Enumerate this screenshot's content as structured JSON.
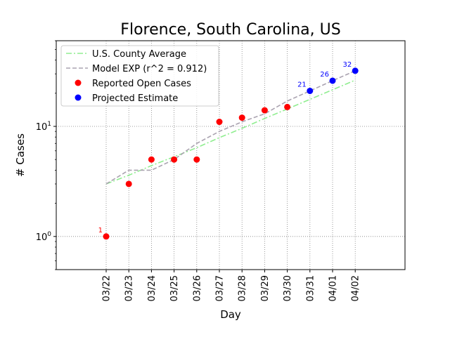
{
  "chart_data": {
    "type": "line",
    "title": "Florence, South Carolina, US",
    "xlabel": "Day",
    "ylabel": "# Cases",
    "yscale": "log",
    "ylim": [
      0.5,
      60
    ],
    "y_ticks": [
      {
        "value": 1,
        "label": "10^0"
      },
      {
        "value": 10,
        "label": "10^1"
      }
    ],
    "grid": true,
    "legend_position": "top-left",
    "categories": [
      "03/22",
      "03/23",
      "03/24",
      "03/25",
      "03/26",
      "03/27",
      "03/28",
      "03/29",
      "03/30",
      "03/31",
      "04/01",
      "04/02"
    ],
    "series": [
      {
        "name": "U.S. County Average",
        "style": "dashdot",
        "color": "#90ee90",
        "values": [
          3.0,
          3.6,
          4.4,
          5.3,
          6.4,
          7.9,
          9.6,
          11.8,
          14.4,
          17.6,
          21.5,
          26.3
        ]
      },
      {
        "name": "Model EXP (r^2 = 0.912)",
        "style": "dashed",
        "color": "#aaa3b0",
        "values": [
          3.0,
          4.0,
          4.0,
          5.0,
          7.0,
          9.0,
          11.0,
          13.0,
          17.0,
          21.0,
          26.0,
          32.0
        ]
      },
      {
        "name": "Reported Open Cases",
        "style": "marker",
        "color": "#ff0000",
        "values": [
          1,
          3,
          5,
          5,
          5,
          11,
          12,
          14,
          15,
          null,
          null,
          null
        ]
      },
      {
        "name": "Projected Estimate",
        "style": "marker",
        "color": "#0000ff",
        "values": [
          null,
          null,
          null,
          null,
          null,
          null,
          null,
          null,
          null,
          21,
          26,
          32
        ]
      }
    ],
    "annotations": [
      {
        "category": "03/22",
        "value": 1,
        "text": "1",
        "color": "#ff0000"
      },
      {
        "category": "03/31",
        "value": 21,
        "text": "21",
        "color": "#0000ff"
      },
      {
        "category": "04/01",
        "value": 26,
        "text": "26",
        "color": "#0000ff"
      },
      {
        "category": "04/02",
        "value": 32,
        "text": "32",
        "color": "#0000ff"
      }
    ]
  }
}
